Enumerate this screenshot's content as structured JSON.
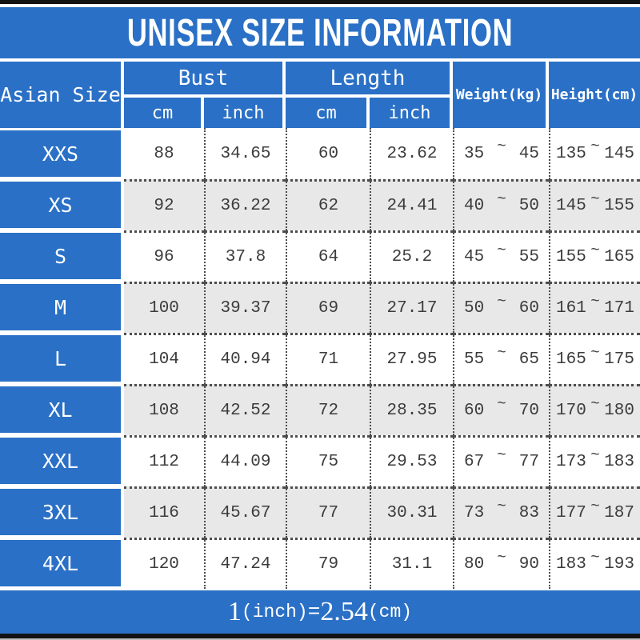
{
  "title": "UNISEX SIZE INFORMATION",
  "colors": {
    "accent_blue": "#2a70c6",
    "alt_row_gray": "#e8e8e8",
    "border_bar": "#121212"
  },
  "table": {
    "size_header": "Asian Size",
    "groups": [
      {
        "label": "Bust",
        "sub": [
          "cm",
          "inch"
        ]
      },
      {
        "label": "Length",
        "sub": [
          "cm",
          "inch"
        ]
      }
    ],
    "weight_header": "Weight(kg)",
    "height_header": "Height(cm)",
    "tilde": "~",
    "rows": [
      {
        "size": "XXS",
        "bust_cm": "88",
        "bust_inch": "34.65",
        "length_cm": "60",
        "length_inch": "23.62",
        "weight_min": "35",
        "weight_max": "45",
        "height_min": "135",
        "height_max": "145"
      },
      {
        "size": "XS",
        "bust_cm": "92",
        "bust_inch": "36.22",
        "length_cm": "62",
        "length_inch": "24.41",
        "weight_min": "40",
        "weight_max": "50",
        "height_min": "145",
        "height_max": "155"
      },
      {
        "size": "S",
        "bust_cm": "96",
        "bust_inch": "37.8",
        "length_cm": "64",
        "length_inch": "25.2",
        "weight_min": "45",
        "weight_max": "55",
        "height_min": "155",
        "height_max": "165"
      },
      {
        "size": "M",
        "bust_cm": "100",
        "bust_inch": "39.37",
        "length_cm": "69",
        "length_inch": "27.17",
        "weight_min": "50",
        "weight_max": "60",
        "height_min": "161",
        "height_max": "171"
      },
      {
        "size": "L",
        "bust_cm": "104",
        "bust_inch": "40.94",
        "length_cm": "71",
        "length_inch": "27.95",
        "weight_min": "55",
        "weight_max": "65",
        "height_min": "165",
        "height_max": "175"
      },
      {
        "size": "XL",
        "bust_cm": "108",
        "bust_inch": "42.52",
        "length_cm": "72",
        "length_inch": "28.35",
        "weight_min": "60",
        "weight_max": "70",
        "height_min": "170",
        "height_max": "180"
      },
      {
        "size": "XXL",
        "bust_cm": "112",
        "bust_inch": "44.09",
        "length_cm": "75",
        "length_inch": "29.53",
        "weight_min": "67",
        "weight_max": "77",
        "height_min": "173",
        "height_max": "183"
      },
      {
        "size": "3XL",
        "bust_cm": "116",
        "bust_inch": "45.67",
        "length_cm": "77",
        "length_inch": "30.31",
        "weight_min": "73",
        "weight_max": "83",
        "height_min": "177",
        "height_max": "187"
      },
      {
        "size": "4XL",
        "bust_cm": "120",
        "bust_inch": "47.24",
        "length_cm": "79",
        "length_inch": "31.1",
        "weight_min": "80",
        "weight_max": "90",
        "height_min": "183",
        "height_max": "193"
      }
    ]
  },
  "footer": {
    "left_value": "1",
    "left_unit": "(inch)",
    "equals": "=",
    "right_value": "2.54",
    "right_unit": "(cm)"
  }
}
